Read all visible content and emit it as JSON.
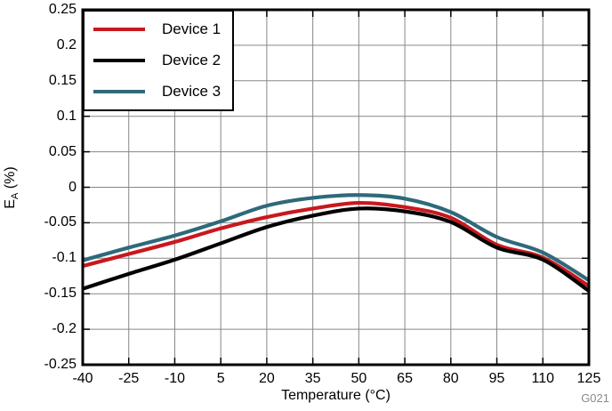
{
  "figure": {
    "code": "G021"
  },
  "chart_data": {
    "type": "line",
    "xlabel": "Temperature (°C)",
    "ylabel": "E_A (%)",
    "ylabel_parts": {
      "main": "E",
      "sub": "A",
      "unit": " (%)"
    },
    "xlim": [
      -40,
      125
    ],
    "ylim": [
      -0.25,
      0.25
    ],
    "xticks": [
      -40,
      -25,
      -10,
      5,
      20,
      35,
      50,
      65,
      80,
      95,
      110,
      125
    ],
    "yticks": [
      0.25,
      0.2,
      0.15,
      0.1,
      0.05,
      0,
      -0.05,
      -0.1,
      -0.15,
      -0.2,
      -0.25
    ],
    "ytick_labels": [
      "0.25",
      "0.2",
      "0.15",
      "0.1",
      "0.05",
      "0",
      "-0.05",
      "-0.1",
      "-0.15",
      "-0.2",
      "-0.25"
    ],
    "grid": true,
    "legend_position": "top-left",
    "x": [
      -40,
      -25,
      -10,
      5,
      20,
      35,
      50,
      65,
      80,
      95,
      110,
      125
    ],
    "series": [
      {
        "name": "Device 1",
        "color": "#C8181E",
        "values": [
          -0.111,
          -0.094,
          -0.077,
          -0.058,
          -0.042,
          -0.03,
          -0.022,
          -0.028,
          -0.043,
          -0.081,
          -0.099,
          -0.139
        ]
      },
      {
        "name": "Device 2",
        "color": "#000000",
        "values": [
          -0.143,
          -0.122,
          -0.102,
          -0.079,
          -0.056,
          -0.04,
          -0.03,
          -0.034,
          -0.049,
          -0.085,
          -0.102,
          -0.146
        ]
      },
      {
        "name": "Device 3",
        "color": "#2F697A",
        "values": [
          -0.103,
          -0.085,
          -0.068,
          -0.048,
          -0.026,
          -0.015,
          -0.011,
          -0.016,
          -0.035,
          -0.07,
          -0.092,
          -0.131
        ]
      }
    ],
    "colors": {
      "grid": "#878787",
      "axis": "#000000",
      "code_label": "#8A8A8A"
    }
  }
}
